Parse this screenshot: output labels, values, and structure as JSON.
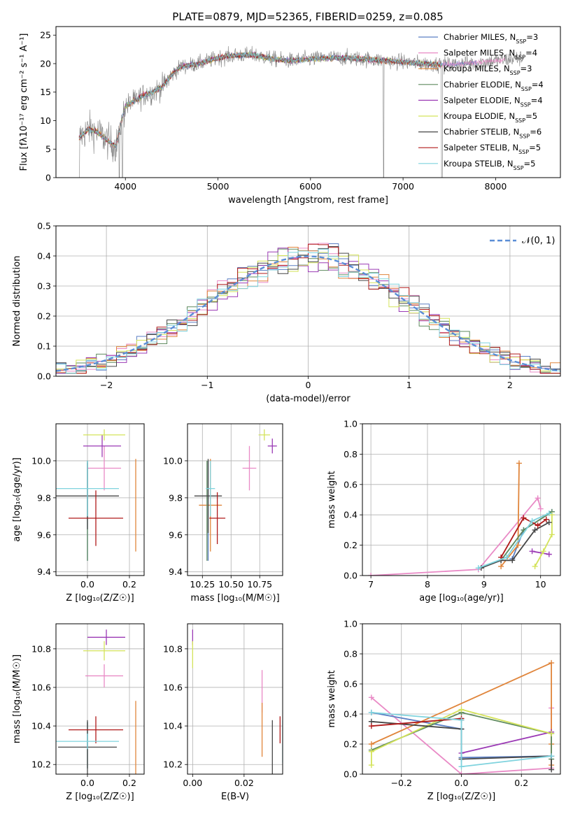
{
  "title": "PLATE=0879, MJD=52365, FIBERID=0259, z=0.085",
  "models": [
    {
      "label": "Chabrier MILES, N",
      "sub": "SSP",
      "n": "=3",
      "color": "#5b7fc4"
    },
    {
      "label": "Salpeter MILES, N",
      "sub": "SSP",
      "n": "=4",
      "color": "#e98ac6"
    },
    {
      "label": "Kroupa MILES, N",
      "sub": "SSP",
      "n": "=3",
      "color": "#e0853b"
    },
    {
      "label": "Chabrier ELODIE, N",
      "sub": "SSP",
      "n": "=4",
      "color": "#5e8a5e"
    },
    {
      "label": "Salpeter ELODIE, N",
      "sub": "SSP",
      "n": "=4",
      "color": "#9b3ab5"
    },
    {
      "label": "Kroupa ELODIE, N",
      "sub": "SSP",
      "n": "=5",
      "color": "#d4e35a"
    },
    {
      "label": "Chabrier STELIB, N",
      "sub": "SSP",
      "n": "=6",
      "color": "#474747"
    },
    {
      "label": "Salpeter STELIB, N",
      "sub": "SSP",
      "n": "=5",
      "color": "#b01a1a"
    },
    {
      "label": "Kroupa STELIB, N",
      "sub": "SSP",
      "n": "=5",
      "color": "#7fd3de"
    }
  ],
  "chart_data": [
    {
      "type": "line",
      "panel": "spectrum",
      "xlabel": "wavelength [Angstrom, rest frame]",
      "ylabel": "Flux [fλ10⁻¹⁷ erg cm⁻² s⁻¹ A⁻¹]",
      "xlim": [
        3250,
        8700
      ],
      "ylim": [
        0,
        26.5
      ],
      "xticks": [
        4000,
        5000,
        6000,
        7000,
        8000
      ],
      "yticks": [
        0,
        5,
        10,
        15,
        20,
        25
      ],
      "data_color": "#808080",
      "continuum": {
        "x": [
          3500,
          3600,
          3700,
          3800,
          3900,
          3950,
          4000,
          4100,
          4200,
          4300,
          4400,
          4500,
          4600,
          4800,
          5000,
          5200,
          5400,
          5600,
          5800,
          6000,
          6200,
          6400,
          6600,
          6800,
          7000,
          7200,
          7500,
          7800,
          8000,
          8300
        ],
        "y": [
          7,
          8.5,
          8,
          6.5,
          5.5,
          9.5,
          12.5,
          13.5,
          14.5,
          15,
          16,
          18,
          19.5,
          20,
          21,
          21.5,
          21.5,
          20.8,
          20.5,
          20.8,
          21,
          21,
          20.8,
          20.5,
          20.3,
          20,
          19.8,
          20.2,
          20.5,
          21
        ]
      },
      "features": [
        {
          "x": 3500,
          "depth": 1
        },
        {
          "x": 3934,
          "depth": 1
        },
        {
          "x": 3968,
          "depth": 1
        },
        {
          "x": 6790,
          "depth": 1
        },
        {
          "x": 7420,
          "depth": 1
        }
      ]
    },
    {
      "type": "line",
      "panel": "residuals",
      "xlabel": "(data-model)/error",
      "ylabel": "Normed distribution",
      "xlim": [
        -2.5,
        2.5
      ],
      "ylim": [
        0,
        0.5
      ],
      "xticks": [
        -2,
        -1,
        0,
        1,
        2
      ],
      "xticklabels": [
        "−2",
        "−1",
        "0",
        "1",
        "2"
      ],
      "yticks": [
        0,
        0.1,
        0.2,
        0.3,
        0.4,
        0.5
      ],
      "yticklabels": [
        "0.0",
        "0.1",
        "0.2",
        "0.3",
        "0.4",
        "0.5"
      ],
      "legend": "𝒩(0, 1)",
      "gauss_color": "#5b8ed6"
    },
    {
      "type": "scatter",
      "panel": "age-vs-Z",
      "xlabel": "Z [log₁₀(Z/Z☉)]",
      "ylabel": "age  [log₁₀(age/yr)]",
      "xlim": [
        -0.15,
        0.27
      ],
      "ylim": [
        9.38,
        10.2
      ],
      "xticks": [
        0,
        0.2
      ],
      "xticklabels": [
        "0.0",
        "0.2"
      ],
      "yticks": [
        9.4,
        9.6,
        9.8,
        10.0
      ],
      "yticklabels": [
        "9.4",
        "9.6",
        "9.8",
        "10.0"
      ],
      "points": [
        {
          "m": 0,
          "x": 0.0,
          "xe": 0.0,
          "y": 9.73,
          "ye": 0.27
        },
        {
          "m": 1,
          "x": 0.08,
          "xe": 0.08,
          "y": 9.96,
          "ye": 0.12
        },
        {
          "m": 2,
          "x": 0.23,
          "xe": 0.0,
          "y": 9.76,
          "ye": 0.25
        },
        {
          "m": 3,
          "x": 0.0,
          "xe": 0.0,
          "y": 9.73,
          "ye": 0.27
        },
        {
          "m": 4,
          "x": 0.07,
          "xe": 0.09,
          "y": 10.08,
          "ye": 0.06
        },
        {
          "m": 5,
          "x": 0.08,
          "xe": 0.1,
          "y": 10.14,
          "ye": 0.03
        },
        {
          "m": 6,
          "x": 0.0,
          "xe": 0.15,
          "y": 9.81,
          "ye": 0.18
        },
        {
          "m": 7,
          "x": 0.04,
          "xe": 0.13,
          "y": 9.69,
          "ye": 0.15
        },
        {
          "m": 8,
          "x": 0.0,
          "xe": 0.15,
          "y": 9.85,
          "ye": 0.15
        }
      ]
    },
    {
      "type": "scatter",
      "panel": "age-vs-mass",
      "xlabel": "mass [log₁₀(M/M☉)]",
      "ylabel": "",
      "xlim": [
        10.12,
        10.95
      ],
      "ylim": [
        9.38,
        10.2
      ],
      "xticks": [
        10.25,
        10.5,
        10.75
      ],
      "xticklabels": [
        "10.25",
        "10.50",
        "10.75"
      ],
      "yticks": [
        9.4,
        9.6,
        9.8,
        10.0
      ],
      "yticklabels": [
        "9.4",
        "9.6",
        "9.8",
        "10.0"
      ],
      "points": [
        {
          "m": 0,
          "x": 10.3,
          "xe": 0.0,
          "y": 9.73,
          "ye": 0.27
        },
        {
          "m": 1,
          "x": 10.66,
          "xe": 0.06,
          "y": 9.96,
          "ye": 0.12
        },
        {
          "m": 2,
          "x": 10.32,
          "xe": 0.1,
          "y": 9.76,
          "ye": 0.25
        },
        {
          "m": 3,
          "x": 10.29,
          "xe": 0.0,
          "y": 9.73,
          "ye": 0.27
        },
        {
          "m": 4,
          "x": 10.86,
          "xe": 0.04,
          "y": 10.08,
          "ye": 0.04
        },
        {
          "m": 5,
          "x": 10.79,
          "xe": 0.05,
          "y": 10.14,
          "ye": 0.03
        },
        {
          "m": 6,
          "x": 10.3,
          "xe": 0.12,
          "y": 9.81,
          "ye": 0.2
        },
        {
          "m": 7,
          "x": 10.38,
          "xe": 0.07,
          "y": 9.69,
          "ye": 0.14
        },
        {
          "m": 8,
          "x": 10.32,
          "xe": 0.04,
          "y": 9.85,
          "ye": 0.15
        }
      ]
    },
    {
      "type": "line",
      "panel": "weight-vs-age",
      "xlabel": "age  [log₁₀(age/yr)]",
      "ylabel": "mass weight",
      "xlim": [
        6.85,
        10.35
      ],
      "ylim": [
        0,
        1.0
      ],
      "xticks": [
        7,
        8,
        9,
        10
      ],
      "xticklabels": [
        "7",
        "8",
        "9",
        "10"
      ],
      "yticks": [
        0,
        0.2,
        0.4,
        0.6,
        0.8,
        1.0
      ],
      "yticklabels": [
        "0.0",
        "0.2",
        "0.4",
        "0.6",
        "0.8",
        "1.0"
      ],
      "series": [
        {
          "m": 1,
          "x": [
            7.0,
            8.9,
            9.95,
            10.0
          ],
          "y": [
            0.0,
            0.04,
            0.51,
            0.44
          ]
        },
        {
          "m": 0,
          "x": [
            9.5,
            9.7,
            10.2
          ],
          "y": [
            0.11,
            0.3,
            0.42
          ]
        },
        {
          "m": 2,
          "x": [
            9.3,
            9.6,
            9.62
          ],
          "y": [
            0.06,
            0.2,
            0.74
          ]
        },
        {
          "m": 3,
          "x": [
            9.3,
            9.7,
            10.2
          ],
          "y": [
            0.1,
            0.3,
            0.42
          ]
        },
        {
          "m": 4,
          "x": [
            9.85,
            10.15
          ],
          "y": [
            0.16,
            0.14
          ]
        },
        {
          "m": 5,
          "x": [
            9.9,
            10.05,
            10.2,
            10.2
          ],
          "y": [
            0.06,
            0.16,
            0.27,
            0.4
          ]
        },
        {
          "m": 6,
          "x": [
            8.95,
            9.3,
            9.5,
            9.9,
            10.15
          ],
          "y": [
            0.05,
            0.1,
            0.1,
            0.3,
            0.35
          ]
        },
        {
          "m": 7,
          "x": [
            9.3,
            9.7,
            9.95,
            10.1
          ],
          "y": [
            0.12,
            0.38,
            0.33,
            0.37
          ]
        },
        {
          "m": 8,
          "x": [
            8.9,
            9.4,
            9.85,
            10.15
          ],
          "y": [
            0.05,
            0.12,
            0.36,
            0.41
          ]
        }
      ]
    },
    {
      "type": "scatter",
      "panel": "mass-vs-Z",
      "xlabel": "Z [log₁₀(Z/Z☉)]",
      "ylabel": "mass [log₁₀(M/M☉)]",
      "xlim": [
        -0.15,
        0.27
      ],
      "ylim": [
        10.15,
        10.93
      ],
      "xticks": [
        0,
        0.2
      ],
      "xticklabels": [
        "0.0",
        "0.2"
      ],
      "yticks": [
        10.2,
        10.4,
        10.6,
        10.8
      ],
      "yticklabels": [
        "10.2",
        "10.4",
        "10.6",
        "10.8"
      ],
      "points": [
        {
          "m": 0,
          "x": 0.0,
          "xe": 0.0,
          "y": 10.3,
          "ye": 0.12
        },
        {
          "m": 1,
          "x": 0.08,
          "xe": 0.09,
          "y": 10.66,
          "ye": 0.06
        },
        {
          "m": 2,
          "x": 0.23,
          "xe": 0.0,
          "y": 10.33,
          "ye": 0.2
        },
        {
          "m": 3,
          "x": 0.0,
          "xe": 0.0,
          "y": 10.3,
          "ye": 0.12
        },
        {
          "m": 4,
          "x": 0.09,
          "xe": 0.09,
          "y": 10.86,
          "ye": 0.04
        },
        {
          "m": 5,
          "x": 0.08,
          "xe": 0.1,
          "y": 10.79,
          "ye": 0.05
        },
        {
          "m": 6,
          "x": 0.0,
          "xe": 0.14,
          "y": 10.29,
          "ye": 0.14
        },
        {
          "m": 7,
          "x": 0.04,
          "xe": 0.13,
          "y": 10.38,
          "ye": 0.07
        },
        {
          "m": 8,
          "x": 0.0,
          "xe": 0.15,
          "y": 10.32,
          "ye": 0.04
        }
      ]
    },
    {
      "type": "scatter",
      "panel": "mass-vs-EBV",
      "xlabel": "E(B-V)",
      "ylabel": "",
      "xlim": [
        -0.002,
        0.035
      ],
      "ylim": [
        10.15,
        10.93
      ],
      "xticks": [
        0.0,
        0.02
      ],
      "xticklabels": [
        "0.00",
        "0.02"
      ],
      "yticks": [
        10.2,
        10.4,
        10.6,
        10.8
      ],
      "yticklabels": [
        "10.2",
        "10.4",
        "10.6",
        "10.8"
      ],
      "points": [
        {
          "m": 1,
          "x": 0.027,
          "xe": 0.0,
          "y": 10.58,
          "ye": 0.11
        },
        {
          "m": 2,
          "x": 0.027,
          "xe": 0.0,
          "y": 10.38,
          "ye": 0.14
        },
        {
          "m": 4,
          "x": 0.0,
          "xe": 0.0,
          "y": 10.86,
          "ye": 0.04
        },
        {
          "m": 5,
          "x": 0.0,
          "xe": 0.0,
          "y": 10.77,
          "ye": 0.07
        },
        {
          "m": 6,
          "x": 0.031,
          "xe": 0.0,
          "y": 10.29,
          "ye": 0.14
        },
        {
          "m": 7,
          "x": 0.034,
          "xe": 0.0,
          "y": 10.38,
          "ye": 0.07
        },
        {
          "m": 8,
          "x": 0.035,
          "xe": 0.0,
          "y": 10.32,
          "ye": 0.11
        }
      ]
    },
    {
      "type": "line",
      "panel": "weight-vs-Z",
      "xlabel": "Z [log₁₀(Z/Z☉)]",
      "ylabel": "mass weight",
      "xlim": [
        -0.33,
        0.33
      ],
      "ylim": [
        0,
        1.0
      ],
      "xticks": [
        -0.2,
        0,
        0.2
      ],
      "xticklabels": [
        "−0.2",
        "0.0",
        "0.2"
      ],
      "yticks": [
        0,
        0.2,
        0.4,
        0.6,
        0.8,
        1.0
      ],
      "yticklabels": [
        "0.0",
        "0.2",
        "0.4",
        "0.6",
        "0.8",
        "1.0"
      ],
      "series": [
        {
          "m": 1,
          "x": [
            -0.3,
            0.0,
            0.3,
            0.3
          ],
          "y": [
            0.51,
            0.0,
            0.04,
            0.44
          ]
        },
        {
          "m": 0,
          "x": [
            -0.3,
            0.0,
            0.0,
            0.3
          ],
          "y": [
            0.41,
            0.3,
            0.11,
            0.12
          ]
        },
        {
          "m": 2,
          "x": [
            -0.3,
            0.3,
            0.3,
            0.3
          ],
          "y": [
            0.2,
            0.74,
            0.06,
            0.2
          ]
        },
        {
          "m": 3,
          "x": [
            -0.3,
            0.0,
            0.3,
            0.3
          ],
          "y": [
            0.16,
            0.41,
            0.27,
            0.1
          ]
        },
        {
          "m": 4,
          "x": [
            0.0,
            0.3
          ],
          "y": [
            0.14,
            0.28
          ]
        },
        {
          "m": 5,
          "x": [
            -0.3,
            -0.3,
            0.0,
            0.3
          ],
          "y": [
            0.06,
            0.15,
            0.43,
            0.27
          ]
        },
        {
          "m": 6,
          "x": [
            -0.3,
            0.0,
            0.0,
            0.3,
            0.3
          ],
          "y": [
            0.35,
            0.3,
            0.1,
            0.12,
            0.03
          ]
        },
        {
          "m": 7,
          "x": [
            -0.3,
            0.0,
            0.0
          ],
          "y": [
            0.32,
            0.37,
            0.36
          ]
        },
        {
          "m": 8,
          "x": [
            -0.3,
            0.0,
            0.0,
            0.3
          ],
          "y": [
            0.41,
            0.36,
            0.05,
            0.12
          ]
        }
      ]
    }
  ]
}
